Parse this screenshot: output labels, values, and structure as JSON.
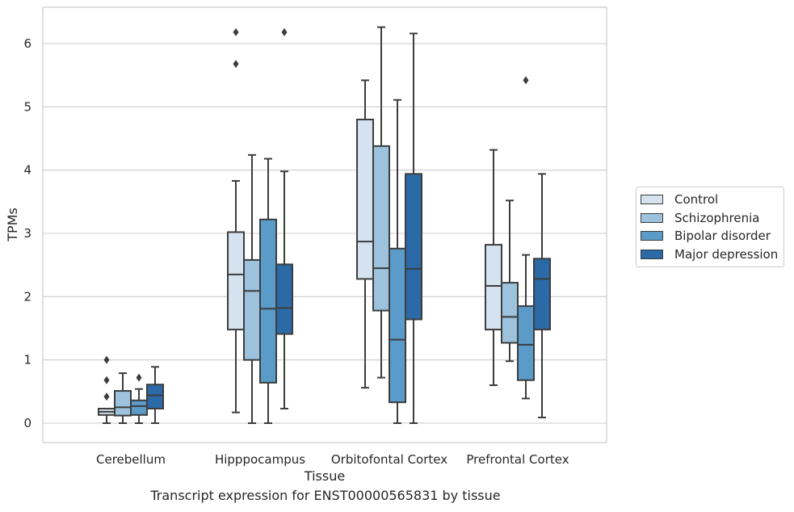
{
  "chart_data": {
    "type": "box",
    "caption": "Transcript expression for ENST00000565831 by tissue",
    "xlabel": "Tissue",
    "ylabel": "TPMs",
    "ylim": [
      -0.3,
      6.6
    ],
    "yticks": [
      0,
      1,
      2,
      3,
      4,
      5,
      6
    ],
    "grid": "horizontal",
    "legend_position": "right",
    "categories": [
      "Cerebellum",
      "Hipppocampus",
      "Orbitofontal Cortex",
      "Prefrontal Cortex"
    ],
    "series": [
      {
        "name": "Control",
        "color": "#d5e3f0",
        "boxes": [
          {
            "min": 0.0,
            "q1": 0.13,
            "median": 0.18,
            "q3": 0.23,
            "max": 0.23,
            "outliers": [
              0.42,
              0.68,
              1.0
            ]
          },
          {
            "min": 0.17,
            "q1": 1.48,
            "median": 2.35,
            "q3": 3.02,
            "max": 3.83,
            "outliers": [
              5.68,
              6.18
            ]
          },
          {
            "min": 0.56,
            "q1": 2.28,
            "median": 2.87,
            "q3": 4.8,
            "max": 5.42,
            "outliers": []
          },
          {
            "min": 0.6,
            "q1": 1.48,
            "median": 2.17,
            "q3": 2.82,
            "max": 4.32,
            "outliers": []
          }
        ]
      },
      {
        "name": "Schizophrenia",
        "color": "#9cc2dd",
        "boxes": [
          {
            "min": 0.0,
            "q1": 0.12,
            "median": 0.25,
            "q3": 0.51,
            "max": 0.79,
            "outliers": []
          },
          {
            "min": 0.0,
            "q1": 1.0,
            "median": 2.09,
            "q3": 2.58,
            "max": 4.24,
            "outliers": []
          },
          {
            "min": 0.72,
            "q1": 1.78,
            "median": 2.45,
            "q3": 4.38,
            "max": 6.26,
            "outliers": []
          },
          {
            "min": 0.98,
            "q1": 1.27,
            "median": 1.68,
            "q3": 2.22,
            "max": 3.52,
            "outliers": []
          }
        ]
      },
      {
        "name": "Bipolar disorder",
        "color": "#5b9bc9",
        "boxes": [
          {
            "min": 0.0,
            "q1": 0.13,
            "median": 0.27,
            "q3": 0.36,
            "max": 0.54,
            "outliers": [
              0.72
            ]
          },
          {
            "min": 0.0,
            "q1": 0.64,
            "median": 1.81,
            "q3": 3.22,
            "max": 4.18,
            "outliers": []
          },
          {
            "min": 0.0,
            "q1": 0.33,
            "median": 1.32,
            "q3": 2.76,
            "max": 5.11,
            "outliers": []
          },
          {
            "min": 0.39,
            "q1": 0.68,
            "median": 1.24,
            "q3": 1.85,
            "max": 2.66,
            "outliers": [
              5.42
            ]
          }
        ]
      },
      {
        "name": "Major depression",
        "color": "#2b6aa6",
        "boxes": [
          {
            "min": 0.0,
            "q1": 0.23,
            "median": 0.44,
            "q3": 0.61,
            "max": 0.89,
            "outliers": []
          },
          {
            "min": 0.23,
            "q1": 1.41,
            "median": 1.82,
            "q3": 2.51,
            "max": 3.98,
            "outliers": [
              6.18
            ]
          },
          {
            "min": 0.0,
            "q1": 1.64,
            "median": 2.44,
            "q3": 3.94,
            "max": 6.16,
            "outliers": []
          },
          {
            "min": 0.09,
            "q1": 1.48,
            "median": 2.28,
            "q3": 2.6,
            "max": 3.94,
            "outliers": []
          }
        ]
      }
    ]
  }
}
